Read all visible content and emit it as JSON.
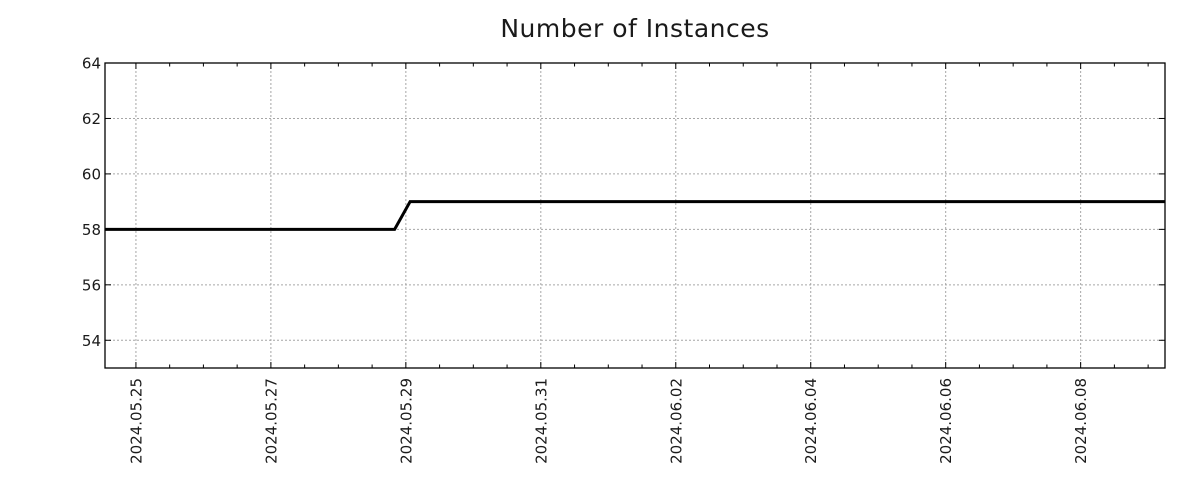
{
  "chart_data": {
    "type": "line",
    "title": "Number of Instances",
    "x_axis": {
      "tick_labels": [
        "2024.05.25",
        "2024.05.27",
        "2024.05.29",
        "2024.05.31",
        "2024.06.02",
        "2024.06.04",
        "2024.06.06",
        "2024.06.08"
      ],
      "range": [
        "2024-05-24 13:00",
        "2024-06-09 06:00"
      ],
      "major_tick_interval_days": 2,
      "minor_tick_interval_days": 0.5,
      "label_rotation_deg": 90
    },
    "y_axis": {
      "tick_labels": [
        "54",
        "56",
        "58",
        "60",
        "62",
        "64"
      ],
      "ticks": [
        54,
        56,
        58,
        60,
        62,
        64
      ],
      "range": [
        53,
        64
      ]
    },
    "grid": {
      "style": "dotted",
      "x": true,
      "y": true
    },
    "legend": false,
    "series": [
      {
        "name": "Number of Instances",
        "color": "#000000",
        "line_width": 3,
        "points": [
          {
            "x": "2024-05-24 13:00",
            "y": 58
          },
          {
            "x": "2024-05-28 20:00",
            "y": 58
          },
          {
            "x": "2024-05-29 01:30",
            "y": 59
          },
          {
            "x": "2024-06-09 06:00",
            "y": 59
          }
        ]
      }
    ]
  },
  "colors": {
    "background": "#ffffff",
    "line": "#000000",
    "grid": "#a6a6a6",
    "axis": "#000000",
    "text": "#1a1a1a"
  }
}
